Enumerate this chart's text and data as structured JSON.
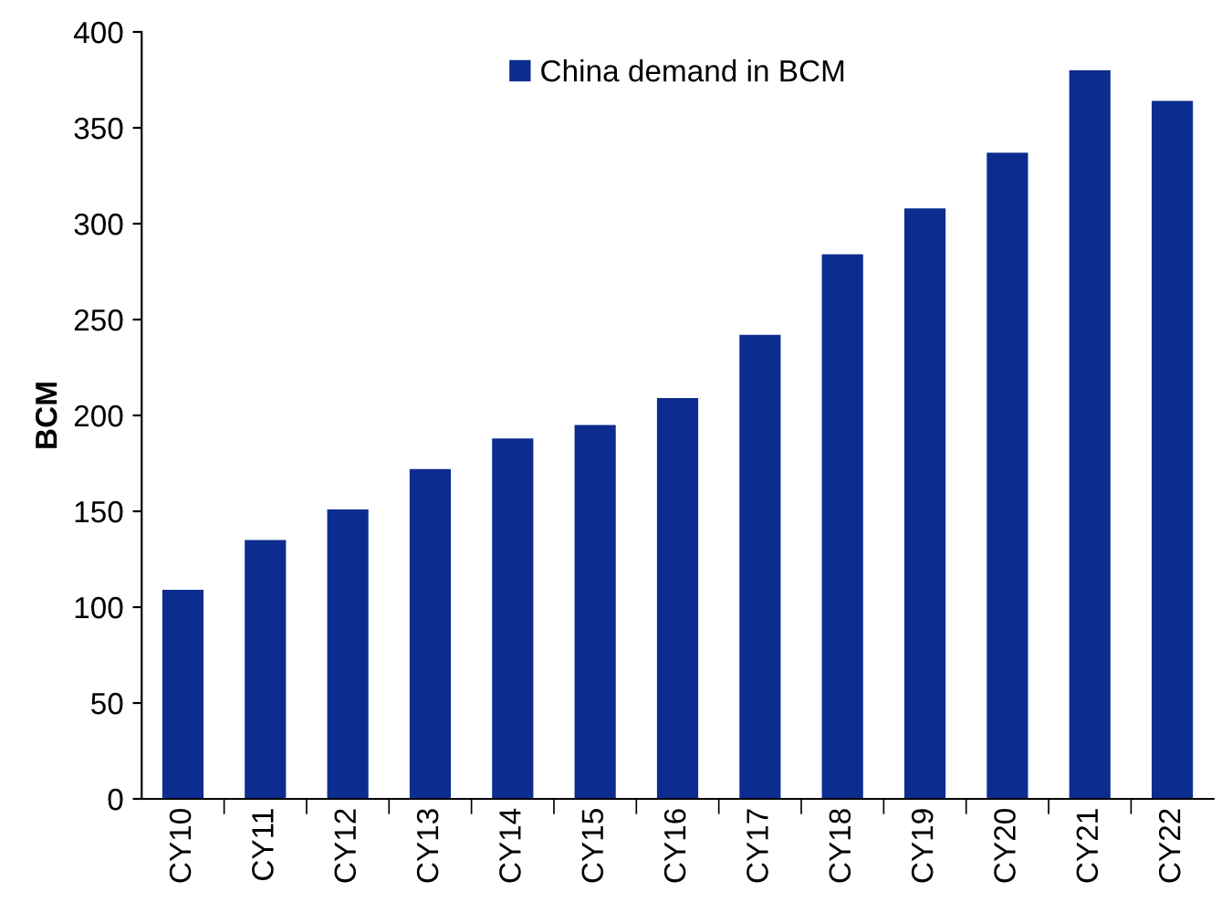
{
  "chart_data": {
    "type": "bar",
    "ylabel": "BCM",
    "categories": [
      "CY10",
      "CY11",
      "CY12",
      "CY13",
      "CY14",
      "CY15",
      "CY16",
      "CY17",
      "CY18",
      "CY19",
      "CY20",
      "CY21",
      "CY22"
    ],
    "series": [
      {
        "name": "China demand in BCM",
        "color": "#0c2d8f",
        "values": [
          109,
          135,
          151,
          172,
          188,
          195,
          209,
          242,
          284,
          308,
          337,
          380,
          364
        ]
      }
    ],
    "ylim": [
      0,
      400
    ],
    "yticks": [
      0,
      50,
      100,
      150,
      200,
      250,
      300,
      350,
      400
    ],
    "grid": false,
    "legend": "top"
  }
}
